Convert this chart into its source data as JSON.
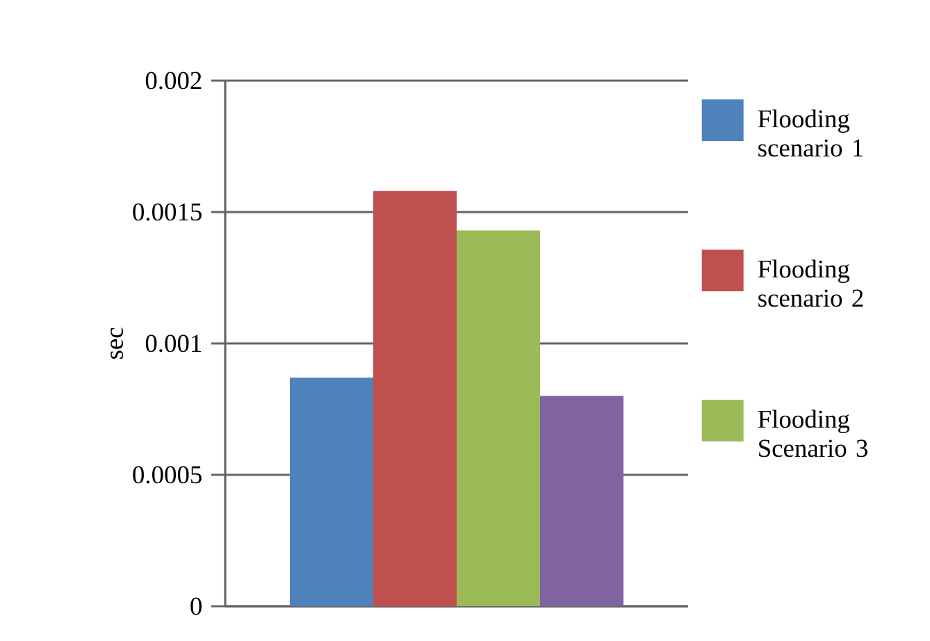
{
  "chart_data": {
    "type": "bar",
    "ylabel": "sec",
    "categories": [
      null
    ],
    "series": [
      {
        "name": "Flooding scenario 1",
        "color": "#4f81bd",
        "values": [
          0.00087
        ]
      },
      {
        "name": "Flooding scenario 2",
        "color": "#c0504d",
        "values": [
          0.00158
        ]
      },
      {
        "name": "Flooding Scenario 3",
        "color": "#9bbb59",
        "values": [
          0.00143
        ]
      },
      {
        "color": "#8064a2",
        "values": [
          0.0008
        ]
      }
    ],
    "ylim": [
      0,
      0.002
    ],
    "yticks": [
      0,
      0.0005,
      0.001,
      0.0015,
      0.002
    ],
    "grid": "y",
    "legend": "right"
  }
}
